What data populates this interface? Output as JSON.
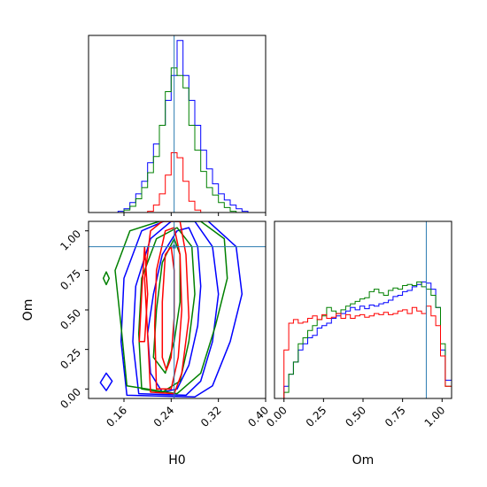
{
  "chart_data": {
    "type": "corner",
    "parameters": [
      "H0",
      "Om"
    ],
    "axes": {
      "H0": {
        "label": "H0",
        "range": [
          0.1,
          0.4
        ],
        "ticks": [
          0.16,
          0.24,
          0.32,
          0.4
        ],
        "tick_labels": [
          "0.16",
          "0.24",
          "0.32",
          "0.40"
        ]
      },
      "Om": {
        "label": "Om",
        "range": [
          -0.06,
          1.06
        ],
        "ticks": [
          0.0,
          0.25,
          0.5,
          0.75,
          1.0
        ],
        "tick_labels": [
          "0.00",
          "0.25",
          "0.50",
          "0.75",
          "1.00"
        ]
      }
    },
    "truth": {
      "H0": 0.245,
      "Om": 0.9
    },
    "series": [
      {
        "color": "#0000ff",
        "h0_hist": {
          "x": [
            0.1,
            0.11,
            0.12,
            0.13,
            0.14,
            0.15,
            0.16,
            0.17,
            0.18,
            0.19,
            0.2,
            0.21,
            0.22,
            0.23,
            0.24,
            0.25,
            0.26,
            0.27,
            0.28,
            0.29,
            0.3,
            0.31,
            0.32,
            0.33,
            0.34,
            0.35,
            0.36,
            0.37,
            0.38,
            0.39,
            0.4
          ],
          "y": [
            0,
            0,
            0,
            0,
            0,
            0.1,
            0.3,
            0.8,
            1.5,
            2.5,
            4,
            5.5,
            7,
            9,
            11,
            13.8,
            11,
            9,
            7,
            5,
            3.5,
            2.3,
            1.5,
            1,
            0.6,
            0.3,
            0.1,
            0,
            0,
            0,
            0
          ]
        },
        "om_hist": {
          "x": [
            -0.06,
            0.0,
            0.03,
            0.06,
            0.09,
            0.12,
            0.15,
            0.18,
            0.21,
            0.24,
            0.27,
            0.3,
            0.33,
            0.36,
            0.39,
            0.42,
            0.45,
            0.48,
            0.51,
            0.54,
            0.57,
            0.6,
            0.63,
            0.66,
            0.69,
            0.72,
            0.75,
            0.78,
            0.81,
            0.84,
            0.87,
            0.9,
            0.93,
            0.96,
            0.99,
            1.02,
            1.06
          ],
          "y": [
            0,
            1,
            2,
            3,
            4,
            4.5,
            5,
            5.2,
            5.8,
            6,
            6.2,
            6.6,
            6.8,
            7,
            7.2,
            7.5,
            7.3,
            7.6,
            7.4,
            7.7,
            7.6,
            7.8,
            7.9,
            8.1,
            8.4,
            8.5,
            8.8,
            8.9,
            9.2,
            9.4,
            9.6,
            9.5,
            9,
            7.5,
            4,
            1.5,
            0
          ]
        },
        "contours": [
          [
            [
              0.205,
              0.1
            ],
            [
              0.2,
              0.35
            ],
            [
              0.21,
              0.6
            ],
            [
              0.225,
              0.85
            ],
            [
              0.25,
              1.0
            ],
            [
              0.27,
              1.02
            ],
            [
              0.285,
              0.9
            ],
            [
              0.29,
              0.65
            ],
            [
              0.285,
              0.4
            ],
            [
              0.27,
              0.15
            ],
            [
              0.25,
              0.0
            ],
            [
              0.225,
              -0.02
            ],
            [
              0.205,
              0.1
            ]
          ],
          [
            [
              0.185,
              -0.03
            ],
            [
              0.175,
              0.3
            ],
            [
              0.18,
              0.65
            ],
            [
              0.205,
              0.95
            ],
            [
              0.24,
              1.06
            ],
            [
              0.28,
              1.06
            ],
            [
              0.31,
              0.9
            ],
            [
              0.32,
              0.6
            ],
            [
              0.31,
              0.3
            ],
            [
              0.29,
              0.05
            ],
            [
              0.265,
              -0.04
            ],
            [
              0.185,
              -0.03
            ]
          ],
          [
            [
              0.165,
              -0.04
            ],
            [
              0.155,
              0.3
            ],
            [
              0.16,
              0.7
            ],
            [
              0.19,
              1.0
            ],
            [
              0.24,
              1.08
            ],
            [
              0.3,
              1.07
            ],
            [
              0.35,
              0.9
            ],
            [
              0.36,
              0.6
            ],
            [
              0.34,
              0.3
            ],
            [
              0.31,
              0.02
            ],
            [
              0.28,
              -0.05
            ],
            [
              0.165,
              -0.04
            ]
          ],
          [
            [
              0.12,
              0.04
            ],
            [
              0.13,
              0.1
            ],
            [
              0.14,
              0.05
            ],
            [
              0.13,
              -0.01
            ],
            [
              0.12,
              0.04
            ]
          ]
        ]
      },
      {
        "color": "#008000",
        "h0_hist": {
          "x": [
            0.1,
            0.11,
            0.12,
            0.13,
            0.14,
            0.15,
            0.16,
            0.17,
            0.18,
            0.19,
            0.2,
            0.21,
            0.22,
            0.23,
            0.24,
            0.25,
            0.26,
            0.27,
            0.28,
            0.29,
            0.3,
            0.31,
            0.32,
            0.33,
            0.34,
            0.35,
            0.36,
            0.37,
            0.38,
            0.39,
            0.4
          ],
          "y": [
            0,
            0,
            0,
            0,
            0,
            0,
            0.2,
            0.5,
            1.1,
            2.0,
            3.2,
            4.5,
            7,
            9.7,
            11.6,
            11,
            10,
            7,
            5,
            3.3,
            2,
            1.4,
            0.8,
            0.4,
            0.1,
            0,
            0,
            0,
            0,
            0,
            0
          ]
        },
        "om_hist": {
          "x": [
            -0.06,
            0.0,
            0.03,
            0.06,
            0.09,
            0.12,
            0.15,
            0.18,
            0.21,
            0.24,
            0.27,
            0.3,
            0.33,
            0.36,
            0.39,
            0.42,
            0.45,
            0.48,
            0.51,
            0.54,
            0.57,
            0.6,
            0.63,
            0.66,
            0.69,
            0.72,
            0.75,
            0.78,
            0.81,
            0.84,
            0.87,
            0.9,
            0.93,
            0.96,
            0.99,
            1.02,
            1.06
          ],
          "y": [
            0,
            0.5,
            2,
            3,
            4.5,
            5,
            5.6,
            6,
            6.5,
            6.8,
            7.5,
            7.2,
            7,
            7.3,
            7.6,
            7.8,
            8,
            8.2,
            8.3,
            8.8,
            9,
            8.7,
            8.5,
            8.9,
            9.1,
            9,
            9.3,
            9.4,
            9.3,
            9.6,
            9.2,
            9,
            8.5,
            7.5,
            4.5,
            1,
            0
          ]
        },
        "contours": [
          [
            [
              0.21,
              0.2
            ],
            [
              0.215,
              0.5
            ],
            [
              0.225,
              0.8
            ],
            [
              0.245,
              0.95
            ],
            [
              0.255,
              0.85
            ],
            [
              0.255,
              0.55
            ],
            [
              0.245,
              0.3
            ],
            [
              0.23,
              0.1
            ],
            [
              0.21,
              0.2
            ]
          ],
          [
            [
              0.19,
              0.0
            ],
            [
              0.185,
              0.35
            ],
            [
              0.19,
              0.7
            ],
            [
              0.215,
              0.95
            ],
            [
              0.25,
              1.02
            ],
            [
              0.275,
              0.9
            ],
            [
              0.28,
              0.6
            ],
            [
              0.27,
              0.3
            ],
            [
              0.255,
              0.05
            ],
            [
              0.225,
              -0.02
            ],
            [
              0.19,
              0.0
            ]
          ],
          [
            [
              0.165,
              0.02
            ],
            [
              0.155,
              0.4
            ],
            [
              0.145,
              0.75
            ],
            [
              0.17,
              1.0
            ],
            [
              0.22,
              1.06
            ],
            [
              0.29,
              1.06
            ],
            [
              0.33,
              0.95
            ],
            [
              0.335,
              0.7
            ],
            [
              0.315,
              0.4
            ],
            [
              0.29,
              0.1
            ],
            [
              0.25,
              -0.03
            ],
            [
              0.165,
              0.02
            ]
          ],
          [
            [
              0.125,
              0.7
            ],
            [
              0.13,
              0.74
            ],
            [
              0.135,
              0.7
            ],
            [
              0.13,
              0.66
            ],
            [
              0.125,
              0.7
            ]
          ]
        ]
      },
      {
        "color": "#ff0000",
        "h0_hist": {
          "x": [
            0.1,
            0.11,
            0.12,
            0.13,
            0.14,
            0.15,
            0.16,
            0.17,
            0.18,
            0.19,
            0.2,
            0.21,
            0.22,
            0.23,
            0.24,
            0.25,
            0.26,
            0.27,
            0.28,
            0.29,
            0.3,
            0.31,
            0.32,
            0.33,
            0.34,
            0.35,
            0.36,
            0.37,
            0.38,
            0.39,
            0.4
          ],
          "y": [
            0,
            0,
            0,
            0,
            0,
            0,
            0,
            0,
            0,
            0,
            0.1,
            0.6,
            1.5,
            3,
            4.8,
            4.4,
            2.5,
            0.9,
            0.2,
            0,
            0,
            0,
            0,
            0,
            0,
            0,
            0,
            0,
            0,
            0,
            0
          ]
        },
        "om_hist": {
          "x": [
            -0.06,
            0.0,
            0.03,
            0.06,
            0.09,
            0.12,
            0.15,
            0.18,
            0.21,
            0.24,
            0.27,
            0.3,
            0.33,
            0.36,
            0.39,
            0.42,
            0.45,
            0.48,
            0.51,
            0.54,
            0.57,
            0.6,
            0.63,
            0.66,
            0.69,
            0.72,
            0.75,
            0.78,
            0.81,
            0.84,
            0.87,
            0.9,
            0.93,
            0.96,
            0.99,
            1.02,
            1.06
          ],
          "y": [
            0,
            4,
            6.2,
            6.5,
            6.2,
            6.3,
            6.6,
            6.8,
            6.5,
            6.9,
            6.6,
            6.7,
            7,
            6.6,
            6.9,
            6.6,
            6.8,
            6.9,
            6.7,
            6.8,
            7,
            6.9,
            7.1,
            6.9,
            7,
            7.2,
            7.3,
            7,
            7.5,
            7.2,
            7,
            7.6,
            6.8,
            6,
            3.5,
            1,
            0
          ]
        },
        "contours": [
          [
            [
              0.225,
              0.2
            ],
            [
              0.225,
              0.55
            ],
            [
              0.23,
              0.85
            ],
            [
              0.24,
              0.9
            ],
            [
              0.245,
              0.75
            ],
            [
              0.245,
              0.45
            ],
            [
              0.24,
              0.2
            ],
            [
              0.232,
              0.12
            ],
            [
              0.225,
              0.2
            ]
          ],
          [
            [
              0.215,
              0.0
            ],
            [
              0.212,
              0.4
            ],
            [
              0.215,
              0.75
            ],
            [
              0.23,
              1.0
            ],
            [
              0.245,
              1.02
            ],
            [
              0.255,
              0.85
            ],
            [
              0.258,
              0.5
            ],
            [
              0.252,
              0.2
            ],
            [
              0.24,
              0.0
            ],
            [
              0.215,
              0.0
            ]
          ],
          [
            [
              0.205,
              -0.02
            ],
            [
              0.2,
              0.35
            ],
            [
              0.195,
              0.7
            ],
            [
              0.205,
              1.0
            ],
            [
              0.225,
              1.06
            ],
            [
              0.255,
              1.06
            ],
            [
              0.265,
              0.85
            ],
            [
              0.27,
              0.45
            ],
            [
              0.258,
              0.1
            ],
            [
              0.245,
              -0.03
            ],
            [
              0.205,
              -0.02
            ]
          ],
          [
            [
              0.186,
              0.3
            ],
            [
              0.19,
              0.6
            ],
            [
              0.195,
              0.9
            ],
            [
              0.2,
              0.6
            ],
            [
              0.195,
              0.3
            ],
            [
              0.186,
              0.3
            ]
          ]
        ]
      }
    ]
  }
}
